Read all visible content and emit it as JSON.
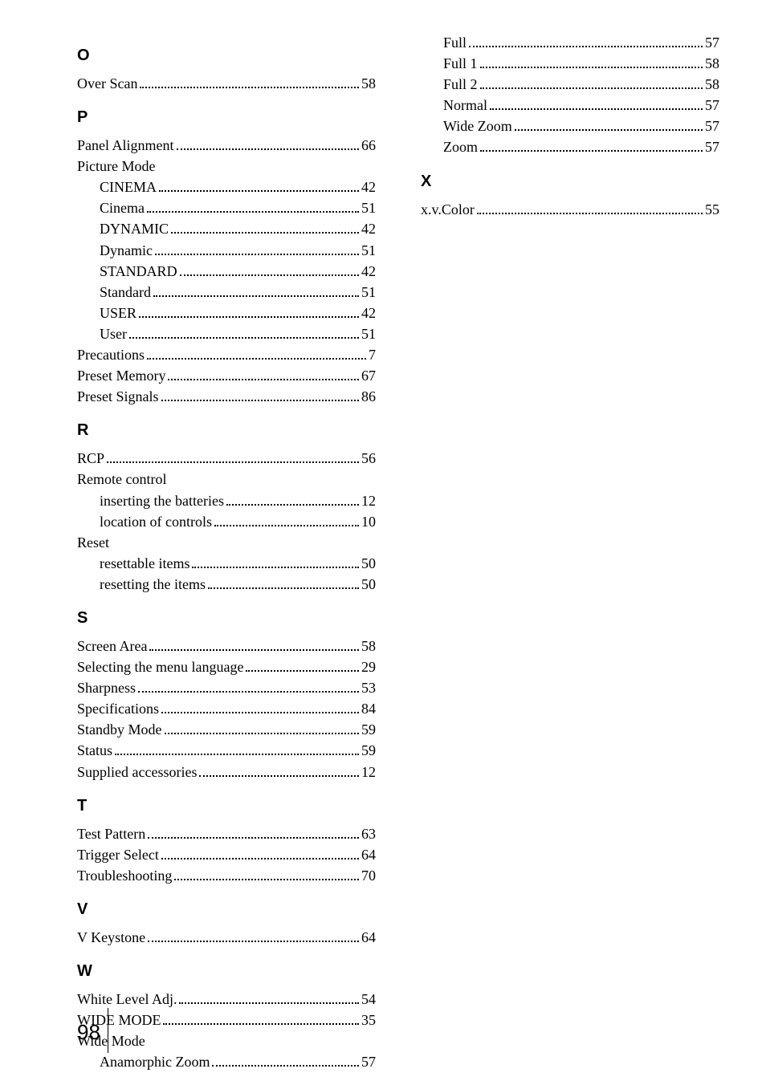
{
  "page_number": "98",
  "font_body": "Times New Roman",
  "font_heading": "Arial",
  "colors": {
    "text": "#000000",
    "bg": "#ffffff"
  },
  "left": [
    {
      "type": "heading",
      "text": "O"
    },
    {
      "type": "entry",
      "label": "Over Scan",
      "page": "58"
    },
    {
      "type": "heading",
      "text": "P"
    },
    {
      "type": "entry",
      "label": "Panel Alignment",
      "page": "66"
    },
    {
      "type": "plain",
      "label": "Picture Mode"
    },
    {
      "type": "sub",
      "label": "CINEMA",
      "page": "42"
    },
    {
      "type": "sub",
      "label": "Cinema",
      "page": "51"
    },
    {
      "type": "sub",
      "label": "DYNAMIC",
      "page": "42"
    },
    {
      "type": "sub",
      "label": "Dynamic",
      "page": "51"
    },
    {
      "type": "sub",
      "label": "STANDARD",
      "page": "42"
    },
    {
      "type": "sub",
      "label": "Standard",
      "page": "51"
    },
    {
      "type": "sub",
      "label": "USER",
      "page": "42"
    },
    {
      "type": "sub",
      "label": "User",
      "page": "51"
    },
    {
      "type": "entry",
      "label": "Precautions",
      "page": "7"
    },
    {
      "type": "entry",
      "label": "Preset Memory",
      "page": "67"
    },
    {
      "type": "entry",
      "label": "Preset Signals",
      "page": "86"
    },
    {
      "type": "heading",
      "text": "R"
    },
    {
      "type": "entry",
      "label": "RCP",
      "page": "56"
    },
    {
      "type": "plain",
      "label": "Remote control"
    },
    {
      "type": "sub",
      "label": "inserting the batteries",
      "page": "12"
    },
    {
      "type": "sub",
      "label": "location of controls",
      "page": "10"
    },
    {
      "type": "plain",
      "label": "Reset"
    },
    {
      "type": "sub",
      "label": "resettable items",
      "page": "50"
    },
    {
      "type": "sub",
      "label": "resetting the items",
      "page": "50"
    },
    {
      "type": "heading",
      "text": "S"
    },
    {
      "type": "entry",
      "label": "Screen Area",
      "page": "58"
    },
    {
      "type": "entry",
      "label": "Selecting the menu language",
      "page": "29"
    },
    {
      "type": "entry",
      "label": "Sharpness",
      "page": "53"
    },
    {
      "type": "entry",
      "label": "Specifications",
      "page": "84"
    },
    {
      "type": "entry",
      "label": "Standby Mode",
      "page": "59"
    },
    {
      "type": "entry",
      "label": "Status",
      "page": "59"
    },
    {
      "type": "entry",
      "label": "Supplied accessories",
      "page": "12"
    },
    {
      "type": "heading",
      "text": "T"
    },
    {
      "type": "entry",
      "label": "Test Pattern",
      "page": "63"
    },
    {
      "type": "entry",
      "label": "Trigger Select",
      "page": "64"
    },
    {
      "type": "entry",
      "label": "Troubleshooting",
      "page": "70"
    },
    {
      "type": "heading",
      "text": "V"
    },
    {
      "type": "entry",
      "label": "V Keystone",
      "page": "64"
    },
    {
      "type": "heading",
      "text": "W"
    },
    {
      "type": "entry",
      "label": "White Level Adj.",
      "page": "54"
    },
    {
      "type": "entry",
      "label": "WIDE MODE",
      "page": "35"
    },
    {
      "type": "plain",
      "label": "Wide Mode"
    },
    {
      "type": "sub",
      "label": "Anamorphic Zoom",
      "page": "57"
    }
  ],
  "right": [
    {
      "type": "sub",
      "label": "Full",
      "page": "57"
    },
    {
      "type": "sub",
      "label": "Full 1",
      "page": "58"
    },
    {
      "type": "sub",
      "label": "Full 2",
      "page": "58"
    },
    {
      "type": "sub",
      "label": "Normal",
      "page": "57"
    },
    {
      "type": "sub",
      "label": "Wide Zoom",
      "page": "57"
    },
    {
      "type": "sub",
      "label": "Zoom",
      "page": "57"
    },
    {
      "type": "heading",
      "text": "X"
    },
    {
      "type": "entry",
      "label": "x.v.Color",
      "page": "55"
    }
  ]
}
